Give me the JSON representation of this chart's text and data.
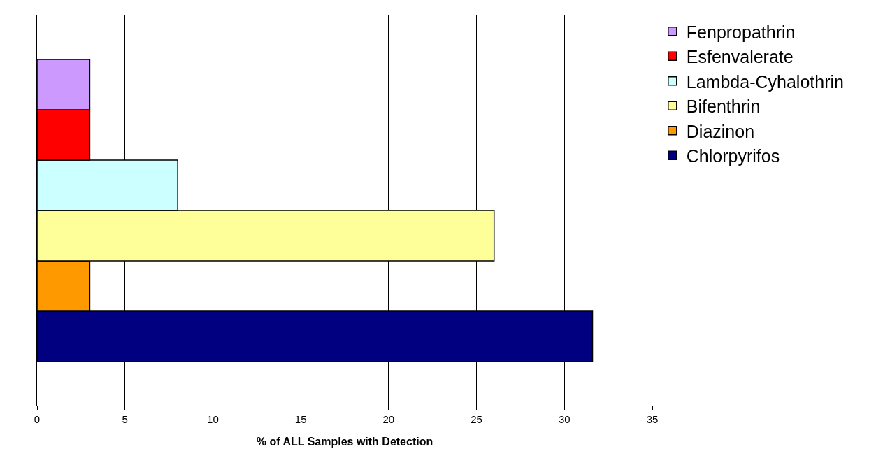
{
  "chart_data": {
    "type": "bar",
    "orientation": "horizontal",
    "xlabel": "% of ALL Samples with Detection",
    "categories": [
      null
    ],
    "series": [
      {
        "name": "Fenpropathrin",
        "color": "#cc99ff",
        "values": [
          3
        ]
      },
      {
        "name": "Esfenvalerate",
        "color": "#ff0000",
        "values": [
          3
        ]
      },
      {
        "name": "Lambda-Cyhalothrin",
        "color": "#ccffff",
        "values": [
          8
        ]
      },
      {
        "name": "Bifenthrin",
        "color": "#ffff99",
        "values": [
          26
        ]
      },
      {
        "name": "Diazinon",
        "color": "#ff9900",
        "values": [
          3
        ]
      },
      {
        "name": "Chlorpyrifos",
        "color": "#000080",
        "values": [
          31.6
        ]
      }
    ],
    "xlim": [
      0,
      35
    ],
    "xticks": [
      0,
      5,
      10,
      15,
      20,
      25,
      30,
      35
    ],
    "grid": "x",
    "legend": "right"
  }
}
